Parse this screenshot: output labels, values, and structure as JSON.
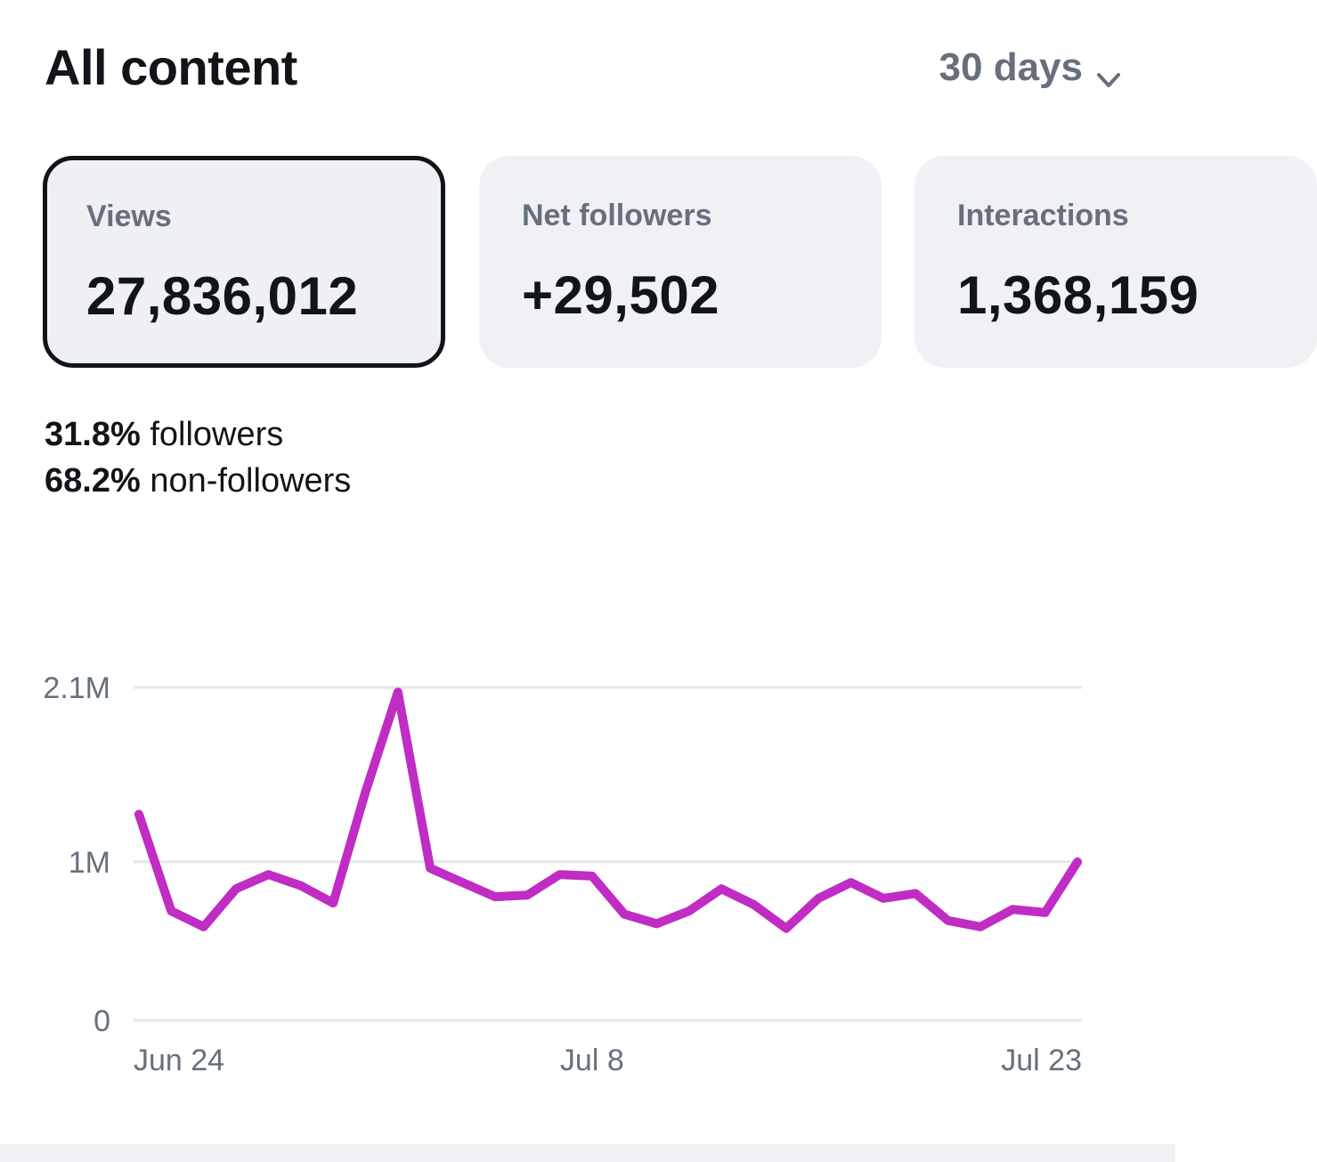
{
  "header": {
    "title": "All content",
    "range_label": "30 days"
  },
  "metrics": [
    {
      "label": "Views",
      "value": "27,836,012",
      "selected": true
    },
    {
      "label": "Net followers",
      "value": "+29,502",
      "selected": false
    },
    {
      "label": "Interactions",
      "value": "1,368,159",
      "selected": false
    }
  ],
  "audience_split": {
    "followers_pct": "31.8%",
    "followers_label": "followers",
    "non_followers_pct": "68.2%",
    "non_followers_label": "non-followers"
  },
  "colors": {
    "line": "#c02cc4",
    "grid": "#e4e6ea",
    "muted_text": "#66707c",
    "card_bg": "#f0f1f4"
  },
  "icons": {
    "range_chevron": "chevron-down-icon"
  },
  "chart_data": {
    "type": "line",
    "x_tick_labels": [
      "Jun 24",
      "Jul 8",
      "Jul 23"
    ],
    "y_tick_labels": [
      "2.1M",
      "1M",
      "0"
    ],
    "ylim": [
      0,
      2100000
    ],
    "grid": true,
    "series": [
      {
        "values": [
          1300000,
          690000,
          590000,
          830000,
          920000,
          850000,
          740000,
          1440000,
          2070000,
          960000,
          870000,
          780000,
          790000,
          920000,
          910000,
          670000,
          610000,
          690000,
          830000,
          730000,
          580000,
          770000,
          870000,
          770000,
          800000,
          630000,
          590000,
          700000,
          680000,
          1000000
        ]
      }
    ],
    "x_tick_indices": [
      0,
      14,
      29
    ]
  }
}
